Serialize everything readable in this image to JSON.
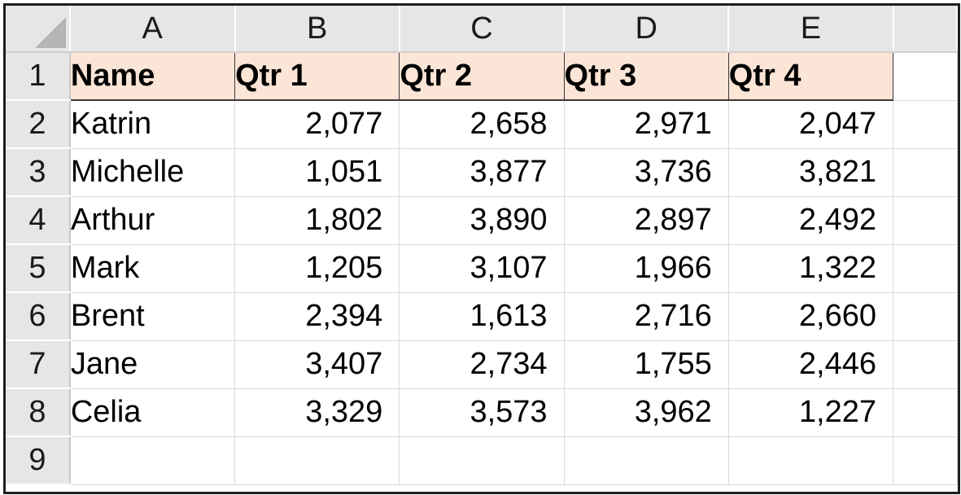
{
  "columns": [
    "A",
    "B",
    "C",
    "D",
    "E"
  ],
  "row_numbers": [
    "1",
    "2",
    "3",
    "4",
    "5",
    "6",
    "7",
    "8",
    "9"
  ],
  "header_fill_color": "#fbe5d6",
  "header": [
    "Name",
    "Qtr 1",
    "Qtr 2",
    "Qtr 3",
    "Qtr 4"
  ],
  "rows": [
    [
      "Katrin",
      "2,077",
      "2,658",
      "2,971",
      "2,047"
    ],
    [
      "Michelle",
      "1,051",
      "3,877",
      "3,736",
      "3,821"
    ],
    [
      "Arthur",
      "1,802",
      "3,890",
      "2,897",
      "2,492"
    ],
    [
      "Mark",
      "1,205",
      "3,107",
      "1,966",
      "1,322"
    ],
    [
      "Brent",
      "2,394",
      "1,613",
      "2,716",
      "2,660"
    ],
    [
      "Jane",
      "3,407",
      "2,734",
      "1,755",
      "2,446"
    ],
    [
      "Celia",
      "3,329",
      "3,573",
      "3,962",
      "1,227"
    ],
    [
      "",
      "",
      "",
      "",
      ""
    ]
  ]
}
